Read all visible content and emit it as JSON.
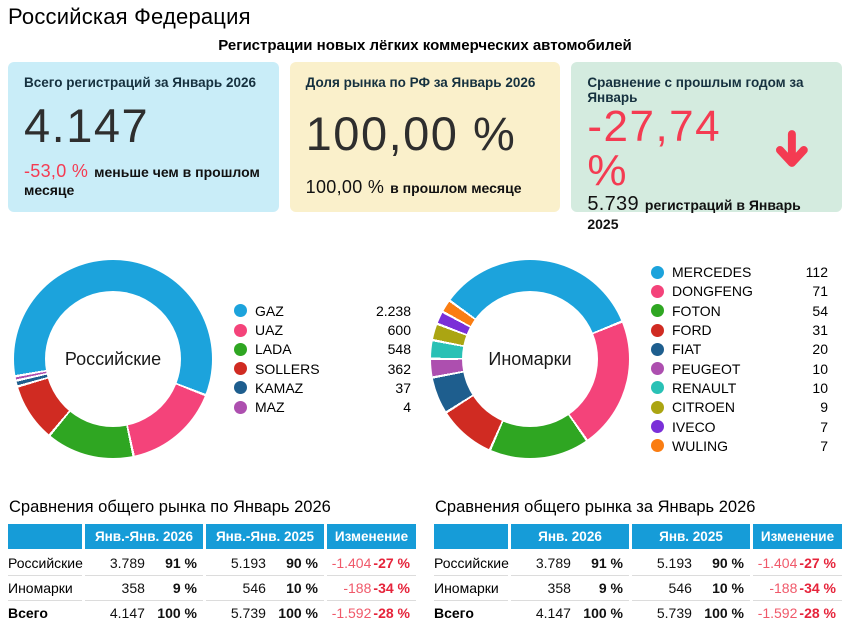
{
  "page": {
    "title": "Российская Федерация",
    "subtitle": "Регистрации новых лёгких коммерческих автомобилей"
  },
  "colors": {
    "accent_red": "#f43b52",
    "negative_light": "#f0596a",
    "negative_bold": "#e6243b",
    "table_header_blue": "#169cd8"
  },
  "cards": {
    "total": {
      "title": "Всего регистраций за Январь 2026",
      "value": "4.147",
      "delta": "-53,0 %",
      "delta_note": "меньше чем в прошлом месяце",
      "bg": "#c9edf8"
    },
    "share": {
      "title": "Доля рынка по РФ за Январь 2026",
      "value": "100,00 %",
      "prev": "100,00 %",
      "prev_note": "в прошлом месяце",
      "bg": "#faf0cb"
    },
    "yoy": {
      "title": "Сравнение с прошлым годом за Январь",
      "value": "-27,74 %",
      "trend_icon": "down-arrow",
      "prev": "5.739",
      "prev_note": "регистраций в Январь 2025",
      "bg": "#d4ebdf"
    }
  },
  "chart_data": [
    {
      "type": "pie",
      "donut": true,
      "title": "Российские",
      "legend_position": "right",
      "start_angle": -100,
      "categories": [
        "GAZ",
        "UAZ",
        "LADA",
        "SOLLERS",
        "KAMAZ",
        "MAZ"
      ],
      "values": [
        2238,
        600,
        548,
        362,
        37,
        4
      ],
      "value_labels": [
        "2.238",
        "600",
        "548",
        "362",
        "37",
        "4"
      ],
      "colors": [
        "#1ca3dc",
        "#f4437a",
        "#2fa622",
        "#d02b22",
        "#1e5e8e",
        "#ad4faf"
      ]
    },
    {
      "type": "pie",
      "donut": true,
      "title": "Иномарки",
      "legend_position": "right",
      "start_angle": -54,
      "categories": [
        "MERCEDES",
        "DONGFENG",
        "FOTON",
        "FORD",
        "FIAT",
        "PEUGEOT",
        "RENAULT",
        "CITROEN",
        "IVECO",
        "WULING"
      ],
      "values": [
        112,
        71,
        54,
        31,
        20,
        10,
        10,
        9,
        7,
        7
      ],
      "value_labels": [
        "112",
        "71",
        "54",
        "31",
        "20",
        "10",
        "10",
        "9",
        "7",
        "7"
      ],
      "colors": [
        "#1ca3dc",
        "#f4437a",
        "#2fa622",
        "#d02b22",
        "#1e5e8e",
        "#ad4faf",
        "#29c1b5",
        "#aba512",
        "#7a2fd8",
        "#fa7d12"
      ]
    },
    {
      "type": "table",
      "title": "Сравнения общего рынка по Январь 2026",
      "col_groups": [
        "",
        "Янв.-Янв. 2026",
        "Янв.-Янв. 2025",
        "Изменение"
      ],
      "rows": [
        {
          "label": "Российские",
          "bold": false,
          "cells": [
            "3.789",
            "91 %",
            "5.193",
            "90 %",
            "-1.404",
            "-27 %"
          ]
        },
        {
          "label": "Иномарки",
          "bold": false,
          "cells": [
            "358",
            "9 %",
            "546",
            "10 %",
            "-188",
            "-34 %"
          ]
        },
        {
          "label": "Всего",
          "bold": true,
          "cells": [
            "4.147",
            "100 %",
            "5.739",
            "100 %",
            "-1.592",
            "-28 %"
          ]
        }
      ]
    },
    {
      "type": "table",
      "title": "Сравнения общего рынка за Январь 2026",
      "col_groups": [
        "",
        "Янв. 2026",
        "Янв. 2025",
        "Изменение"
      ],
      "rows": [
        {
          "label": "Российские",
          "bold": false,
          "cells": [
            "3.789",
            "91 %",
            "5.193",
            "90 %",
            "-1.404",
            "-27 %"
          ]
        },
        {
          "label": "Иномарки",
          "bold": false,
          "cells": [
            "358",
            "9 %",
            "546",
            "10 %",
            "-188",
            "-34 %"
          ]
        },
        {
          "label": "Всего",
          "bold": true,
          "cells": [
            "4.147",
            "100 %",
            "5.739",
            "100 %",
            "-1.592",
            "-28 %"
          ]
        }
      ]
    }
  ]
}
